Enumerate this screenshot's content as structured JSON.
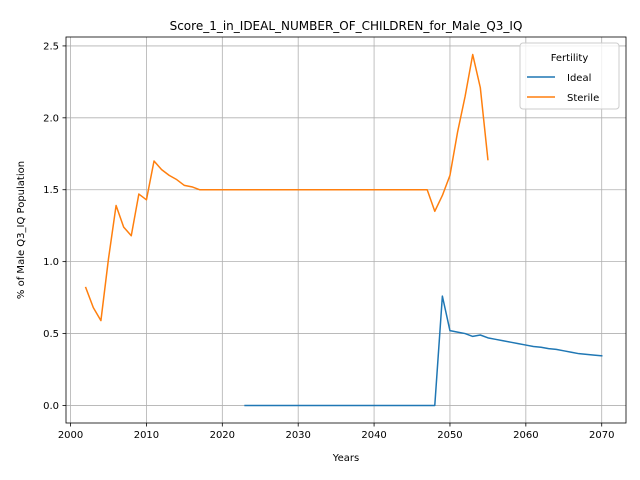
{
  "chart_data": {
    "type": "line",
    "title": "Score_1_in_IDEAL_NUMBER_OF_CHILDREN_for_Male_Q3_IQ",
    "xlabel": "Years",
    "ylabel": "% of Male Q3_IQ Population",
    "xlim": [
      1999.4,
      2073.2
    ],
    "ylim": [
      -0.122,
      2.562
    ],
    "xticks": [
      2000,
      2010,
      2020,
      2030,
      2040,
      2050,
      2060,
      2070
    ],
    "yticks": [
      0.0,
      0.5,
      1.0,
      1.5,
      2.0,
      2.5
    ],
    "ytick_labels": [
      "0.0",
      "0.5",
      "1.0",
      "1.5",
      "2.0",
      "2.5"
    ],
    "grid": true,
    "legend": {
      "title": "Fertility",
      "placement": "top-right"
    },
    "series": [
      {
        "name": "Ideal",
        "color": "#1f77b4",
        "x": [
          2023,
          2024,
          2025,
          2026,
          2027,
          2028,
          2029,
          2030,
          2031,
          2032,
          2033,
          2034,
          2035,
          2036,
          2037,
          2038,
          2039,
          2040,
          2041,
          2042,
          2043,
          2044,
          2045,
          2046,
          2047,
          2048,
          2049,
          2050,
          2051,
          2052,
          2053,
          2054,
          2055,
          2056,
          2057,
          2058,
          2059,
          2060,
          2061,
          2062,
          2063,
          2064,
          2065,
          2066,
          2067,
          2068,
          2069,
          2070
        ],
        "y": [
          0,
          0,
          0,
          0,
          0,
          0,
          0,
          0,
          0,
          0,
          0,
          0,
          0,
          0,
          0,
          0,
          0,
          0,
          0,
          0,
          0,
          0,
          0,
          0,
          0,
          0,
          0.76,
          0.52,
          0.51,
          0.5,
          0.48,
          0.49,
          0.47,
          0.46,
          0.45,
          0.44,
          0.43,
          0.42,
          0.41,
          0.405,
          0.395,
          0.39,
          0.38,
          0.37,
          0.36,
          0.355,
          0.35,
          0.345
        ]
      },
      {
        "name": "Sterile",
        "color": "#ff7f0e",
        "x": [
          2002,
          2003,
          2004,
          2005,
          2006,
          2007,
          2008,
          2009,
          2010,
          2011,
          2012,
          2013,
          2014,
          2015,
          2016,
          2017,
          2018,
          2019,
          2020,
          2021,
          2022,
          2023,
          2024,
          2025,
          2026,
          2027,
          2028,
          2029,
          2030,
          2031,
          2032,
          2033,
          2034,
          2035,
          2036,
          2037,
          2038,
          2039,
          2040,
          2041,
          2042,
          2043,
          2044,
          2045,
          2046,
          2047,
          2048,
          2049,
          2050,
          2051,
          2052,
          2053,
          2054,
          2055
        ],
        "y": [
          0.82,
          0.68,
          0.59,
          1.02,
          1.39,
          1.24,
          1.18,
          1.47,
          1.43,
          1.7,
          1.64,
          1.6,
          1.57,
          1.53,
          1.52,
          1.5,
          1.5,
          1.5,
          1.5,
          1.5,
          1.5,
          1.5,
          1.5,
          1.5,
          1.5,
          1.5,
          1.5,
          1.5,
          1.5,
          1.5,
          1.5,
          1.5,
          1.5,
          1.5,
          1.5,
          1.5,
          1.5,
          1.5,
          1.5,
          1.5,
          1.5,
          1.5,
          1.5,
          1.5,
          1.5,
          1.5,
          1.35,
          1.46,
          1.6,
          1.9,
          2.15,
          2.44,
          2.21,
          1.71
        ]
      }
    ]
  }
}
